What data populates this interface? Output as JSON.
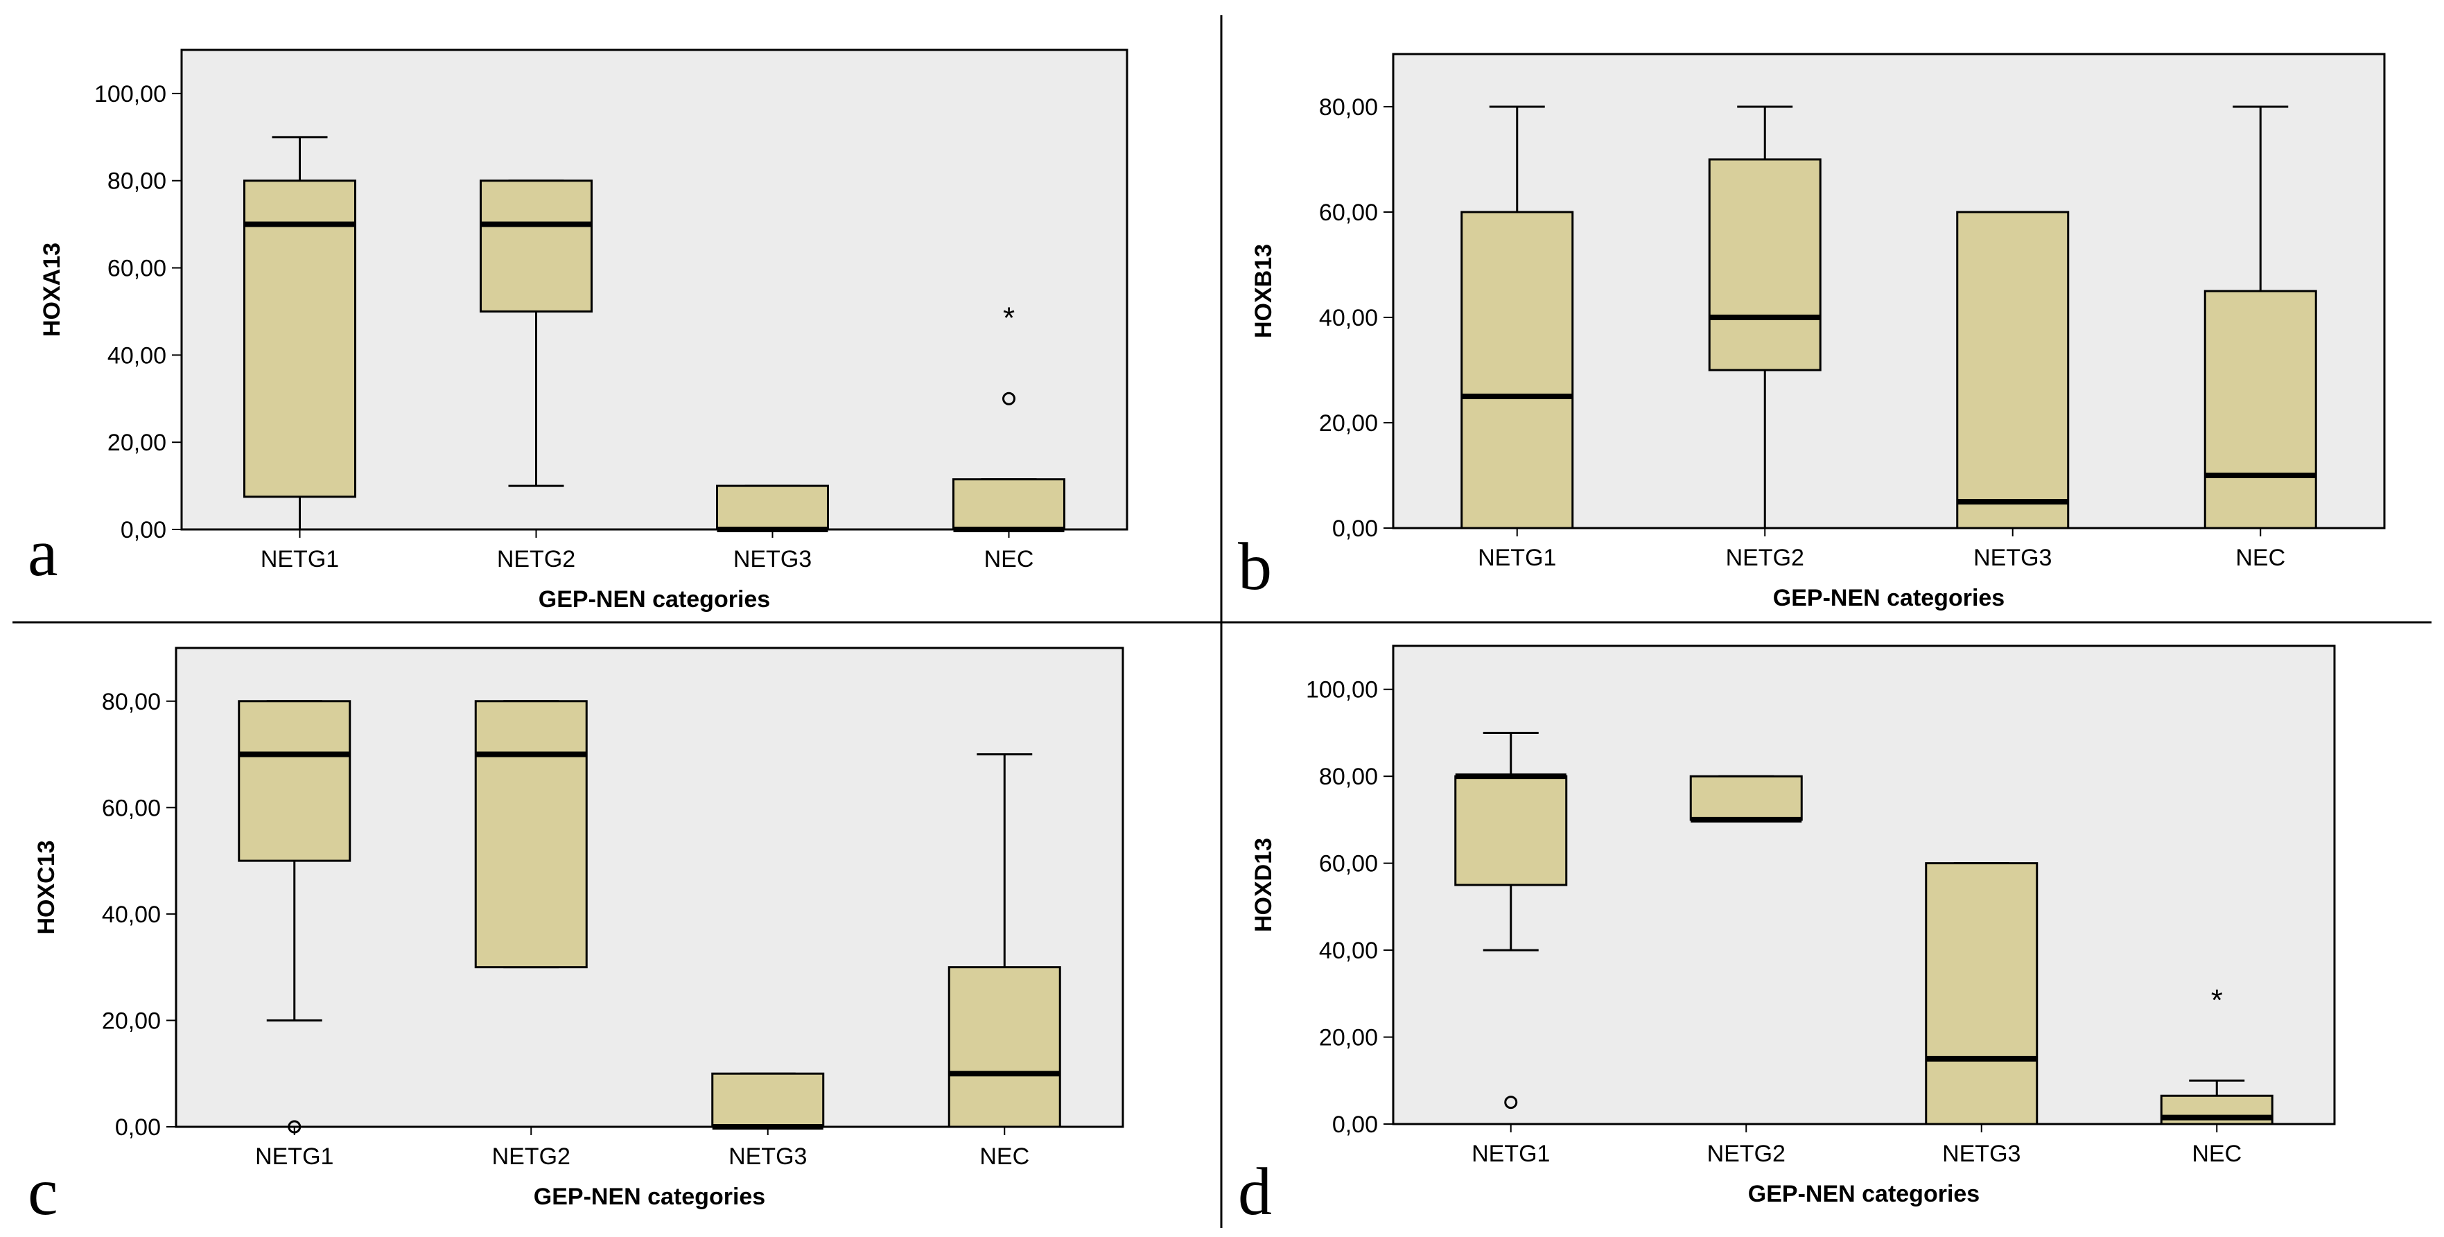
{
  "colors": {
    "plot_background": "#ececec",
    "box_fill": "#d8cf9b",
    "line": "#000000"
  },
  "chart_data": [
    {
      "type": "box",
      "panel": "a",
      "xlabel": "GEP-NEN categories",
      "ylabel": "HOXA13",
      "ylim": [
        0,
        110
      ],
      "yticks": [
        0,
        20,
        40,
        60,
        80,
        100
      ],
      "ytick_labels": [
        "0,00",
        "20,00",
        "40,00",
        "60,00",
        "80,00",
        "100,00"
      ],
      "categories": [
        "NETG1",
        "NETG2",
        "NETG3",
        "NEC"
      ],
      "boxes": [
        {
          "category": "NETG1",
          "whisker_low": 0,
          "q1": 7.5,
          "median": 70,
          "q3": 80,
          "whisker_high": 90,
          "outliers": []
        },
        {
          "category": "NETG2",
          "whisker_low": 10,
          "q1": 50,
          "median": 70,
          "q3": 80,
          "whisker_high": 80,
          "outliers": []
        },
        {
          "category": "NETG3",
          "whisker_low": 0,
          "q1": 0,
          "median": 0,
          "q3": 10,
          "whisker_high": 10,
          "outliers": []
        },
        {
          "category": "NEC",
          "whisker_low": 0,
          "q1": 0,
          "median": 0,
          "q3": 11.5,
          "whisker_high": 11.5,
          "outliers": [
            {
              "value": 50,
              "marker": "*"
            },
            {
              "value": 30,
              "marker": "o"
            }
          ]
        }
      ]
    },
    {
      "type": "box",
      "panel": "b",
      "xlabel": "GEP-NEN categories",
      "ylabel": "HOXB13",
      "ylim": [
        0,
        90
      ],
      "yticks": [
        0,
        20,
        40,
        60,
        80
      ],
      "ytick_labels": [
        "0,00",
        "20,00",
        "40,00",
        "60,00",
        "80,00"
      ],
      "categories": [
        "NETG1",
        "NETG2",
        "NETG3",
        "NEC"
      ],
      "boxes": [
        {
          "category": "NETG1",
          "whisker_low": 0,
          "q1": 0,
          "median": 25,
          "q3": 60,
          "whisker_high": 80,
          "outliers": []
        },
        {
          "category": "NETG2",
          "whisker_low": 0,
          "q1": 30,
          "median": 40,
          "q3": 70,
          "whisker_high": 80,
          "outliers": []
        },
        {
          "category": "NETG3",
          "whisker_low": 0,
          "q1": 0,
          "median": 5,
          "q3": 60,
          "whisker_high": 60,
          "outliers": []
        },
        {
          "category": "NEC",
          "whisker_low": 0,
          "q1": 0,
          "median": 10,
          "q3": 45,
          "whisker_high": 80,
          "outliers": []
        }
      ]
    },
    {
      "type": "box",
      "panel": "c",
      "xlabel": "GEP-NEN categories",
      "ylabel": "HOXC13",
      "ylim": [
        0,
        90
      ],
      "yticks": [
        0,
        20,
        40,
        60,
        80
      ],
      "ytick_labels": [
        "0,00",
        "20,00",
        "40,00",
        "60,00",
        "80,00"
      ],
      "categories": [
        "NETG1",
        "NETG2",
        "NETG3",
        "NEC"
      ],
      "boxes": [
        {
          "category": "NETG1",
          "whisker_low": 20,
          "q1": 50,
          "median": 70,
          "q3": 80,
          "whisker_high": 80,
          "outliers": [
            {
              "value": 0,
              "marker": "o"
            }
          ]
        },
        {
          "category": "NETG2",
          "whisker_low": 30,
          "q1": 30,
          "median": 70,
          "q3": 80,
          "whisker_high": 80,
          "outliers": []
        },
        {
          "category": "NETG3",
          "whisker_low": 0,
          "q1": 0,
          "median": 0,
          "q3": 10,
          "whisker_high": 10,
          "outliers": []
        },
        {
          "category": "NEC",
          "whisker_low": 0,
          "q1": 0,
          "median": 10,
          "q3": 30,
          "whisker_high": 70,
          "outliers": []
        }
      ]
    },
    {
      "type": "box",
      "panel": "d",
      "xlabel": "GEP-NEN categories",
      "ylabel": "HOXD13",
      "ylim": [
        0,
        110
      ],
      "yticks": [
        0,
        20,
        40,
        60,
        80,
        100
      ],
      "ytick_labels": [
        "0,00",
        "20,00",
        "40,00",
        "60,00",
        "80,00",
        "100,00"
      ],
      "categories": [
        "NETG1",
        "NETG2",
        "NETG3",
        "NEC"
      ],
      "boxes": [
        {
          "category": "NETG1",
          "whisker_low": 40,
          "q1": 55,
          "median": 80,
          "q3": 80,
          "whisker_high": 90,
          "outliers": [
            {
              "value": 5,
              "marker": "o"
            }
          ]
        },
        {
          "category": "NETG2",
          "whisker_low": 70,
          "q1": 70,
          "median": 70,
          "q3": 80,
          "whisker_high": 80,
          "outliers": []
        },
        {
          "category": "NETG3",
          "whisker_low": 0,
          "q1": 0,
          "median": 15,
          "q3": 60,
          "whisker_high": 60,
          "outliers": []
        },
        {
          "category": "NEC",
          "whisker_low": 0,
          "q1": 0,
          "median": 1.5,
          "q3": 6.5,
          "whisker_high": 10,
          "outliers": [
            {
              "value": 30,
              "marker": "*"
            }
          ]
        }
      ]
    }
  ]
}
